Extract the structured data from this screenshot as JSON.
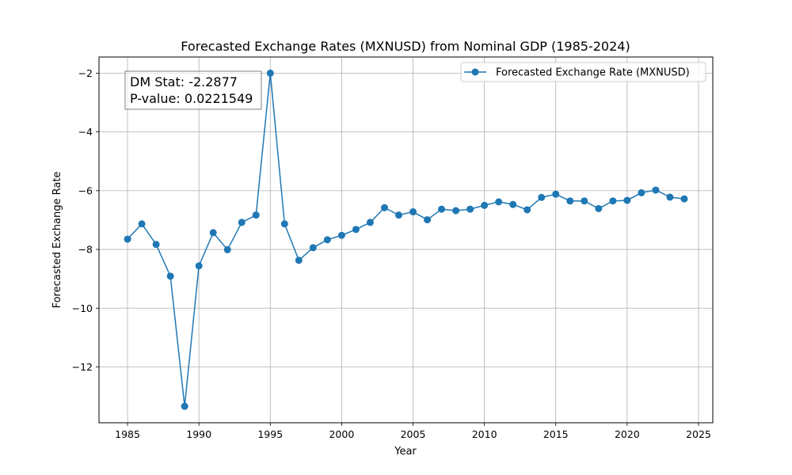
{
  "chart_data": {
    "type": "line",
    "title": "Forecasted Exchange Rates (MXNUSD) from Nominal GDP (1985-2024)",
    "xlabel": "Year",
    "ylabel": "Forecasted Exchange Rate",
    "xlim": [
      1983,
      2026
    ],
    "ylim": [
      -13.9,
      -1.45
    ],
    "x_ticks": [
      1985,
      1990,
      1995,
      2000,
      2005,
      2010,
      2015,
      2020,
      2025
    ],
    "y_ticks": [
      -12,
      -10,
      -8,
      -6,
      -4,
      -2
    ],
    "x_tick_labels": [
      "1985",
      "1990",
      "1995",
      "2000",
      "2005",
      "2010",
      "2015",
      "2020",
      "2025"
    ],
    "y_tick_labels": [
      "−12",
      "−10",
      "−8",
      "−6",
      "−4",
      "−2"
    ],
    "grid": true,
    "legend_position": "top-right",
    "series": [
      {
        "name": "Forecasted Exchange Rate (MXNUSD)",
        "color": "#1f77b4",
        "marker": "circle",
        "x": [
          1985,
          1986,
          1987,
          1988,
          1989,
          1990,
          1991,
          1992,
          1993,
          1994,
          1995,
          1996,
          1997,
          1998,
          1999,
          2000,
          2001,
          2002,
          2003,
          2004,
          2005,
          2006,
          2007,
          2008,
          2009,
          2010,
          2011,
          2012,
          2013,
          2014,
          2015,
          2016,
          2017,
          2018,
          2019,
          2020,
          2021,
          2022,
          2023,
          2024
        ],
        "values": [
          -7.65,
          -7.13,
          -7.83,
          -8.91,
          -13.34,
          -8.56,
          -7.43,
          -8.01,
          -7.08,
          -6.83,
          -2.0,
          -7.13,
          -8.37,
          -7.94,
          -7.67,
          -7.52,
          -7.32,
          -7.08,
          -6.58,
          -6.83,
          -6.72,
          -6.99,
          -6.63,
          -6.68,
          -6.63,
          -6.5,
          -6.38,
          -6.47,
          -6.65,
          -6.23,
          -6.12,
          -6.35,
          -6.35,
          -6.61,
          -6.35,
          -6.33,
          -6.07,
          -5.98,
          -6.22,
          -6.28
        ]
      }
    ],
    "annotations": [
      {
        "lines": [
          "DM Stat: -2.2877",
          "P-value: 0.0221549"
        ],
        "x": 1985,
        "y": -2
      }
    ]
  }
}
